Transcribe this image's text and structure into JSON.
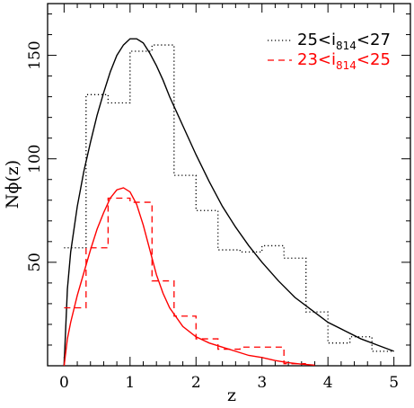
{
  "chart_data": {
    "type": "line",
    "title": "",
    "xlabel": "z",
    "ylabel": "Nϕ(z)",
    "xlim": [
      -0.25,
      5.25
    ],
    "ylim": [
      0,
      175
    ],
    "x_ticks": [
      0,
      1,
      2,
      3,
      4,
      5
    ],
    "x_tick_labels": [
      "0",
      "1",
      "2",
      "3",
      "4",
      "5"
    ],
    "y_ticks": [
      50,
      100,
      150
    ],
    "y_tick_labels": [
      "50",
      "100",
      "150"
    ],
    "grid": false,
    "legend_position": "top-right",
    "legend": [
      {
        "text_parts": [
          "25<i",
          "814",
          "<27"
        ],
        "style": "dotted",
        "color": "#000000"
      },
      {
        "text_parts": [
          "23<i",
          "814",
          "<25"
        ],
        "style": "dashed",
        "color": "#ff0000"
      }
    ],
    "series": [
      {
        "name": "25<i814<27",
        "kind": "histogram",
        "color": "#000000",
        "dash": "dotted",
        "edges": [
          0.0,
          0.333,
          0.667,
          1.0,
          1.333,
          1.667,
          2.0,
          2.333,
          2.667,
          3.0,
          3.333,
          3.667,
          4.0,
          4.333,
          4.667,
          5.0
        ],
        "values": [
          57,
          131,
          127,
          152,
          155,
          92,
          75,
          56,
          55,
          58,
          52,
          26,
          11,
          14,
          7
        ]
      },
      {
        "name": "25<i814<27 model",
        "kind": "curve",
        "color": "#000000",
        "dash": "solid",
        "x": [
          0.0,
          0.05,
          0.1,
          0.2,
          0.3,
          0.4,
          0.5,
          0.6,
          0.7,
          0.8,
          0.9,
          1.0,
          1.1,
          1.2,
          1.3,
          1.4,
          1.5,
          1.6,
          1.8,
          2.0,
          2.2,
          2.4,
          2.6,
          2.8,
          3.0,
          3.25,
          3.5,
          3.75,
          4.0,
          4.25,
          4.5,
          4.75,
          5.0
        ],
        "y": [
          0,
          37,
          55,
          77,
          94,
          108,
          121,
          132,
          142,
          150,
          155,
          158,
          158,
          156,
          151,
          145,
          138,
          130,
          116,
          102,
          89,
          77,
          67,
          58,
          50,
          41,
          33,
          27,
          21,
          17,
          13,
          10,
          7
        ]
      },
      {
        "name": "23<i814<25",
        "kind": "histogram",
        "color": "#ff0000",
        "dash": "dashed",
        "edges": [
          0.0,
          0.333,
          0.667,
          1.0,
          1.333,
          1.667,
          2.0,
          2.333,
          2.667,
          3.0,
          3.333,
          3.667
        ],
        "values": [
          28,
          57,
          81,
          79,
          41,
          24,
          13,
          8,
          9,
          9,
          1
        ]
      },
      {
        "name": "23<i814<25 model",
        "kind": "curve",
        "color": "#ff0000",
        "dash": "solid",
        "x": [
          0.0,
          0.05,
          0.1,
          0.2,
          0.3,
          0.4,
          0.5,
          0.6,
          0.7,
          0.8,
          0.9,
          1.0,
          1.1,
          1.2,
          1.3,
          1.4,
          1.5,
          1.6,
          1.8,
          2.0,
          2.2,
          2.4,
          2.6,
          2.8,
          3.0,
          3.2,
          3.4,
          3.6,
          3.8
        ],
        "y": [
          0,
          13,
          21,
          34,
          45,
          56,
          66,
          74,
          81,
          85,
          86,
          84,
          78,
          68,
          56,
          44,
          35,
          28,
          19,
          14,
          11,
          9,
          7,
          5,
          4,
          2.5,
          1.5,
          0.8,
          0.3
        ]
      }
    ]
  }
}
